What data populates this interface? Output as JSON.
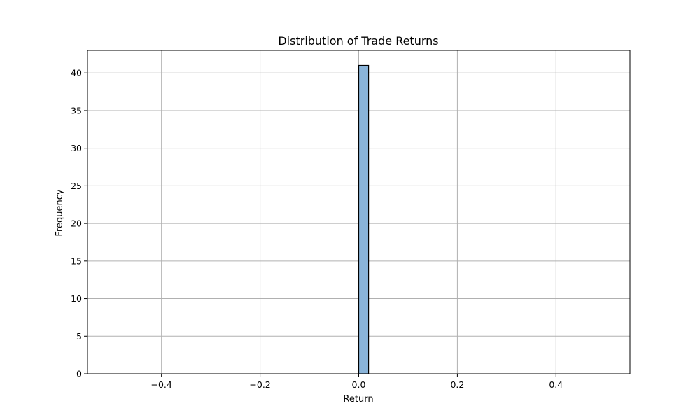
{
  "chart_data": {
    "type": "bar",
    "title": "Distribution of Trade Returns",
    "xlabel": "Return",
    "ylabel": "Frequency",
    "xlim": [
      -0.55,
      0.55
    ],
    "ylim": [
      0,
      43
    ],
    "x_ticks": [
      -0.4,
      -0.2,
      0.0,
      0.2,
      0.4
    ],
    "x_tick_labels": [
      "−0.4",
      "−0.2",
      "0.0",
      "0.2",
      "0.4"
    ],
    "y_ticks": [
      0,
      5,
      10,
      15,
      20,
      25,
      30,
      35,
      40
    ],
    "y_tick_labels": [
      "0",
      "5",
      "10",
      "15",
      "20",
      "25",
      "30",
      "35",
      "40"
    ],
    "grid": true,
    "bins": [
      {
        "x0": -0.5,
        "x1": 0.0,
        "count": 0
      },
      {
        "x0": 0.0,
        "x1": 0.02,
        "count": 41
      },
      {
        "x0": 0.02,
        "x1": 0.5,
        "count": 0
      }
    ],
    "colors": {
      "bar_fill": "#8ab4d9",
      "bar_edge": "#000000",
      "grid": "#b0b0b0",
      "axis": "#000000"
    }
  }
}
